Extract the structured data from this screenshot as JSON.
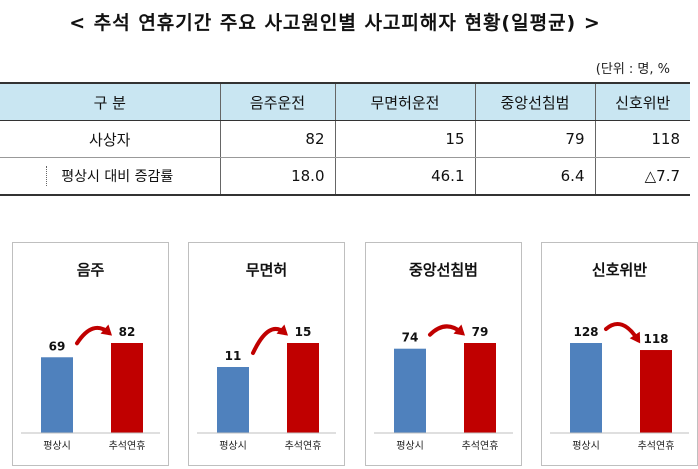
{
  "title": "< 추석 연휴기간 주요 사고원인별 사고피해자 현황(일평균) >",
  "unit": "(단위 : 명, %",
  "table": {
    "header": [
      "구 분",
      "음주운전",
      "무면허운전",
      "중앙선침범",
      "신호위반"
    ],
    "rows": [
      {
        "label": "사상자",
        "values": [
          "82",
          "15",
          "79",
          "118"
        ]
      },
      {
        "label": "평상시 대비 증감률",
        "values": [
          "18.0",
          "46.1",
          "6.4",
          "△7.7"
        ]
      }
    ]
  },
  "chart_data": [
    {
      "type": "bar",
      "title": "음주",
      "categories": [
        "평상시",
        "추석연휴"
      ],
      "values": [
        69,
        82
      ],
      "colors": [
        "#4f81bd",
        "#c00000"
      ],
      "arrow_color": "#c00000",
      "trend": "up"
    },
    {
      "type": "bar",
      "title": "무면허",
      "categories": [
        "평상시",
        "추석연휴"
      ],
      "values": [
        11,
        15
      ],
      "colors": [
        "#4f81bd",
        "#c00000"
      ],
      "arrow_color": "#c00000",
      "trend": "up"
    },
    {
      "type": "bar",
      "title": "중앙선침범",
      "categories": [
        "평상시",
        "추석연휴"
      ],
      "values": [
        74,
        79
      ],
      "colors": [
        "#4f81bd",
        "#c00000"
      ],
      "arrow_color": "#c00000",
      "trend": "up"
    },
    {
      "type": "bar",
      "title": "신호위반",
      "categories": [
        "평상시",
        "추석연휴"
      ],
      "values": [
        128,
        118
      ],
      "colors": [
        "#4f81bd",
        "#c00000"
      ],
      "arrow_color": "#c00000",
      "trend": "down"
    }
  ]
}
